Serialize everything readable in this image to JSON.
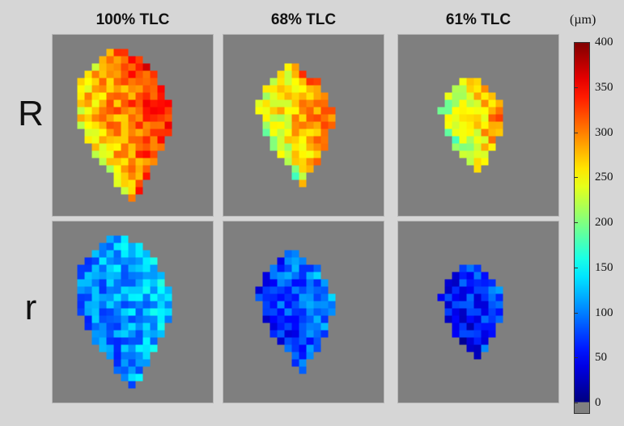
{
  "chart_data": {
    "type": "heatmap",
    "columns": [
      {
        "title": "100% TLC",
        "scale": 1.0
      },
      {
        "title": "68% TLC",
        "scale": 0.78
      },
      {
        "title": "61% TLC",
        "scale": 0.65
      }
    ],
    "rows": [
      {
        "label": "R",
        "quantity": "R",
        "typical_values": [
          300,
          270,
          255
        ]
      },
      {
        "label": "r",
        "quantity": "r",
        "typical_values": [
          110,
          80,
          60
        ]
      }
    ],
    "colorbar": {
      "unit": "(µm)",
      "min": 0,
      "max": 400,
      "ticks": [
        0,
        50,
        100,
        150,
        200,
        250,
        300,
        350,
        400
      ],
      "tick_labels": [
        "0",
        "50",
        "100",
        "150",
        "200",
        "250",
        "300",
        "350",
        "400"
      ],
      "below_min_color": "#808080",
      "colormap": "jet"
    },
    "background_color": "#7f7f7f"
  }
}
